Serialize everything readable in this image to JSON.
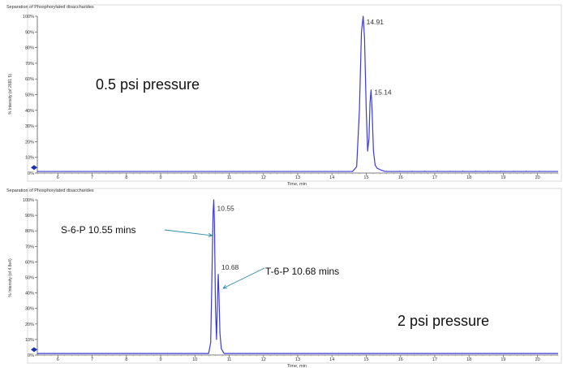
{
  "chart_data": [
    {
      "type": "line",
      "title": "Separation of Phosphorylated disaccharides",
      "ylabel": "% Intensity (of 2681 5)",
      "xlabel": "Time, min",
      "xlim": [
        5.4,
        20.6
      ],
      "ylim": [
        0,
        100
      ],
      "x_ticks": [
        "6",
        "7",
        "8",
        "9",
        "10",
        "11",
        "12",
        "13",
        "14",
        "15",
        "16",
        "17",
        "18",
        "19",
        "20"
      ],
      "y_ticks": [
        "0%",
        "10%",
        "20%",
        "30%",
        "40%",
        "50%",
        "60%",
        "70%",
        "80%",
        "90%",
        "100%"
      ],
      "grid": false,
      "annotation": "0.5 psi pressure",
      "peak_labels": [
        {
          "x": 14.91,
          "y": 98,
          "text": "14.91"
        },
        {
          "x": 15.14,
          "y": 53,
          "text": "15.14"
        }
      ],
      "series": [
        {
          "x": [
            5.4,
            14.6,
            14.72,
            14.8,
            14.86,
            14.91,
            14.95,
            15.0,
            15.04,
            15.08,
            15.11,
            15.14,
            15.17,
            15.21,
            15.26,
            15.32,
            15.42,
            15.55,
            20.6
          ],
          "y": [
            1,
            1,
            4,
            40,
            90,
            100,
            86,
            40,
            14,
            22,
            45,
            53,
            40,
            14,
            5,
            3,
            2,
            1,
            1
          ]
        }
      ]
    },
    {
      "type": "line",
      "title": "Separation of Phosphorylated disaccharides",
      "ylabel": "% Intensity (of 4.8e4)",
      "xlabel": "Time, min",
      "xlim": [
        5.4,
        20.6
      ],
      "ylim": [
        0,
        100
      ],
      "x_ticks": [
        "6",
        "7",
        "8",
        "9",
        "10",
        "11",
        "12",
        "13",
        "14",
        "15",
        "16",
        "17",
        "18",
        "19",
        "20"
      ],
      "y_ticks": [
        "0%",
        "10%",
        "20%",
        "30%",
        "40%",
        "50%",
        "60%",
        "70%",
        "80%",
        "90%",
        "100%"
      ],
      "grid": false,
      "annotation": "2 psi pressure",
      "peak_labels": [
        {
          "x": 10.55,
          "y": 96,
          "text": "10.55"
        },
        {
          "x": 10.68,
          "y": 58,
          "text": "10.68"
        }
      ],
      "callouts": [
        {
          "text": "S-6-P 10.55 mins",
          "x": 10.55,
          "y": 77
        },
        {
          "text": "T-6-P 10.68 mins",
          "x": 10.68,
          "y": 43
        }
      ],
      "series": [
        {
          "x": [
            5.4,
            10.4,
            10.46,
            10.5,
            10.53,
            10.55,
            10.57,
            10.6,
            10.63,
            10.66,
            10.68,
            10.7,
            10.73,
            10.77,
            10.85,
            20.6
          ],
          "y": [
            1,
            1,
            8,
            55,
            92,
            100,
            85,
            30,
            10,
            38,
            52,
            40,
            14,
            4,
            1,
            1
          ]
        }
      ]
    }
  ]
}
